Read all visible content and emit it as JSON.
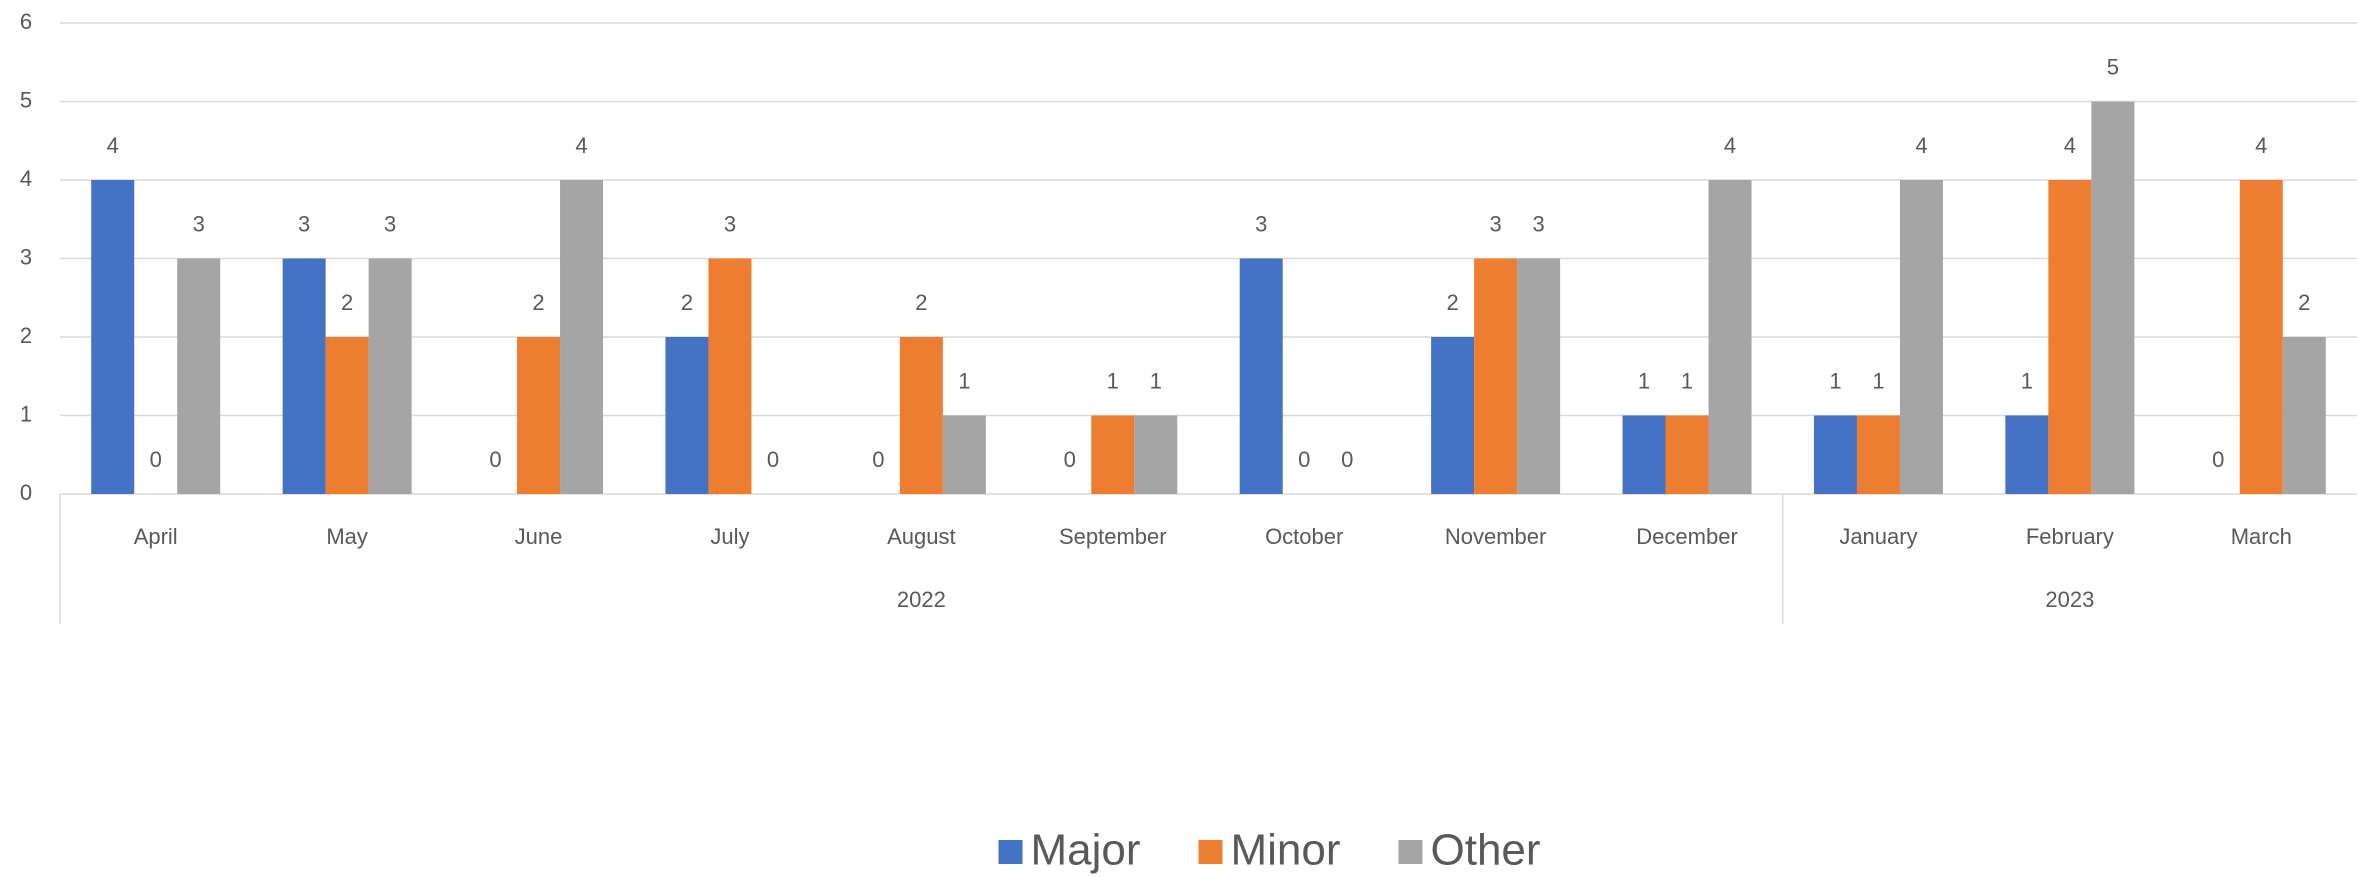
{
  "chart_data": {
    "type": "bar",
    "category_groups": [
      {
        "label": "2022",
        "categories": [
          "April",
          "May",
          "June",
          "July",
          "August",
          "September",
          "October",
          "November",
          "December"
        ]
      },
      {
        "label": "2023",
        "categories": [
          "January",
          "February",
          "March"
        ]
      }
    ],
    "series": [
      {
        "name": "Major",
        "color": "#4472c4",
        "values": [
          4,
          3,
          0,
          2,
          0,
          0,
          3,
          2,
          1,
          1,
          1,
          0
        ]
      },
      {
        "name": "Minor",
        "color": "#ed7d31",
        "values": [
          0,
          2,
          2,
          3,
          2,
          1,
          0,
          3,
          1,
          1,
          4,
          4
        ]
      },
      {
        "name": "Other",
        "color": "#a5a5a5",
        "values": [
          3,
          3,
          4,
          0,
          1,
          1,
          0,
          3,
          4,
          4,
          5,
          2
        ]
      }
    ],
    "ylim": [
      0,
      6
    ],
    "yticks": [
      0,
      1,
      2,
      3,
      4,
      5,
      6
    ],
    "grid": true,
    "data_labels": true,
    "legend": "bottom"
  }
}
